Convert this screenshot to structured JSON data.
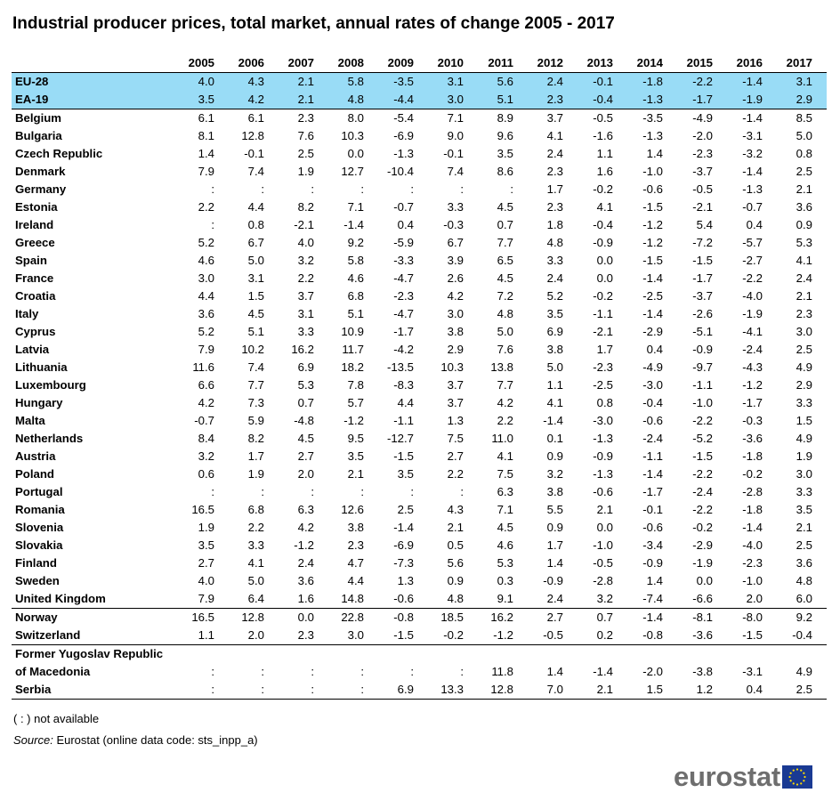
{
  "title": "Industrial producer prices, total market, annual rates of change 2005 - 2017",
  "table": {
    "years": [
      "2005",
      "2006",
      "2007",
      "2008",
      "2009",
      "2010",
      "2011",
      "2012",
      "2013",
      "2014",
      "2015",
      "2016",
      "2017"
    ],
    "rows": [
      {
        "name": "EU-28",
        "values": [
          "4.0",
          "4.3",
          "2.1",
          "5.8",
          "-3.5",
          "3.1",
          "5.6",
          "2.4",
          "-0.1",
          "-1.8",
          "-2.2",
          "-1.4",
          "3.1"
        ]
      },
      {
        "name": "EA-19",
        "values": [
          "3.5",
          "4.2",
          "2.1",
          "4.8",
          "-4.4",
          "3.0",
          "5.1",
          "2.3",
          "-0.4",
          "-1.3",
          "-1.7",
          "-1.9",
          "2.9"
        ]
      },
      {
        "name": "Belgium",
        "values": [
          "6.1",
          "6.1",
          "2.3",
          "8.0",
          "-5.4",
          "7.1",
          "8.9",
          "3.7",
          "-0.5",
          "-3.5",
          "-4.9",
          "-1.4",
          "8.5"
        ]
      },
      {
        "name": "Bulgaria",
        "values": [
          "8.1",
          "12.8",
          "7.6",
          "10.3",
          "-6.9",
          "9.0",
          "9.6",
          "4.1",
          "-1.6",
          "-1.3",
          "-2.0",
          "-3.1",
          "5.0"
        ]
      },
      {
        "name": "Czech Republic",
        "values": [
          "1.4",
          "-0.1",
          "2.5",
          "0.0",
          "-1.3",
          "-0.1",
          "3.5",
          "2.4",
          "1.1",
          "1.4",
          "-2.3",
          "-3.2",
          "0.8"
        ]
      },
      {
        "name": "Denmark",
        "values": [
          "7.9",
          "7.4",
          "1.9",
          "12.7",
          "-10.4",
          "7.4",
          "8.6",
          "2.3",
          "1.6",
          "-1.0",
          "-3.7",
          "-1.4",
          "2.5"
        ]
      },
      {
        "name": "Germany",
        "values": [
          ":",
          ":",
          ":",
          ":",
          ":",
          ":",
          ":",
          "1.7",
          "-0.2",
          "-0.6",
          "-0.5",
          "-1.3",
          "2.1"
        ]
      },
      {
        "name": "Estonia",
        "values": [
          "2.2",
          "4.4",
          "8.2",
          "7.1",
          "-0.7",
          "3.3",
          "4.5",
          "2.3",
          "4.1",
          "-1.5",
          "-2.1",
          "-0.7",
          "3.6"
        ]
      },
      {
        "name": "Ireland",
        "values": [
          ":",
          "0.8",
          "-2.1",
          "-1.4",
          "0.4",
          "-0.3",
          "0.7",
          "1.8",
          "-0.4",
          "-1.2",
          "5.4",
          "0.4",
          "0.9"
        ]
      },
      {
        "name": "Greece",
        "values": [
          "5.2",
          "6.7",
          "4.0",
          "9.2",
          "-5.9",
          "6.7",
          "7.7",
          "4.8",
          "-0.9",
          "-1.2",
          "-7.2",
          "-5.7",
          "5.3"
        ]
      },
      {
        "name": "Spain",
        "values": [
          "4.6",
          "5.0",
          "3.2",
          "5.8",
          "-3.3",
          "3.9",
          "6.5",
          "3.3",
          "0.0",
          "-1.5",
          "-1.5",
          "-2.7",
          "4.1"
        ]
      },
      {
        "name": "France",
        "values": [
          "3.0",
          "3.1",
          "2.2",
          "4.6",
          "-4.7",
          "2.6",
          "4.5",
          "2.4",
          "0.0",
          "-1.4",
          "-1.7",
          "-2.2",
          "2.4"
        ]
      },
      {
        "name": "Croatia",
        "values": [
          "4.4",
          "1.5",
          "3.7",
          "6.8",
          "-2.3",
          "4.2",
          "7.2",
          "5.2",
          "-0.2",
          "-2.5",
          "-3.7",
          "-4.0",
          "2.1"
        ]
      },
      {
        "name": "Italy",
        "values": [
          "3.6",
          "4.5",
          "3.1",
          "5.1",
          "-4.7",
          "3.0",
          "4.8",
          "3.5",
          "-1.1",
          "-1.4",
          "-2.6",
          "-1.9",
          "2.3"
        ]
      },
      {
        "name": "Cyprus",
        "values": [
          "5.2",
          "5.1",
          "3.3",
          "10.9",
          "-1.7",
          "3.8",
          "5.0",
          "6.9",
          "-2.1",
          "-2.9",
          "-5.1",
          "-4.1",
          "3.0"
        ]
      },
      {
        "name": "Latvia",
        "values": [
          "7.9",
          "10.2",
          "16.2",
          "11.7",
          "-4.2",
          "2.9",
          "7.6",
          "3.8",
          "1.7",
          "0.4",
          "-0.9",
          "-2.4",
          "2.5"
        ]
      },
      {
        "name": "Lithuania",
        "values": [
          "11.6",
          "7.4",
          "6.9",
          "18.2",
          "-13.5",
          "10.3",
          "13.8",
          "5.0",
          "-2.3",
          "-4.9",
          "-9.7",
          "-4.3",
          "4.9"
        ]
      },
      {
        "name": "Luxembourg",
        "values": [
          "6.6",
          "7.7",
          "5.3",
          "7.8",
          "-8.3",
          "3.7",
          "7.7",
          "1.1",
          "-2.5",
          "-3.0",
          "-1.1",
          "-1.2",
          "2.9"
        ]
      },
      {
        "name": "Hungary",
        "values": [
          "4.2",
          "7.3",
          "0.7",
          "5.7",
          "4.4",
          "3.7",
          "4.2",
          "4.1",
          "0.8",
          "-0.4",
          "-1.0",
          "-1.7",
          "3.3"
        ]
      },
      {
        "name": "Malta",
        "values": [
          "-0.7",
          "5.9",
          "-4.8",
          "-1.2",
          "-1.1",
          "1.3",
          "2.2",
          "-1.4",
          "-3.0",
          "-0.6",
          "-2.2",
          "-0.3",
          "1.5"
        ]
      },
      {
        "name": "Netherlands",
        "values": [
          "8.4",
          "8.2",
          "4.5",
          "9.5",
          "-12.7",
          "7.5",
          "11.0",
          "0.1",
          "-1.3",
          "-2.4",
          "-5.2",
          "-3.6",
          "4.9"
        ]
      },
      {
        "name": "Austria",
        "values": [
          "3.2",
          "1.7",
          "2.7",
          "3.5",
          "-1.5",
          "2.7",
          "4.1",
          "0.9",
          "-0.9",
          "-1.1",
          "-1.5",
          "-1.8",
          "1.9"
        ]
      },
      {
        "name": "Poland",
        "values": [
          "0.6",
          "1.9",
          "2.0",
          "2.1",
          "3.5",
          "2.2",
          "7.5",
          "3.2",
          "-1.3",
          "-1.4",
          "-2.2",
          "-0.2",
          "3.0"
        ]
      },
      {
        "name": "Portugal",
        "values": [
          ":",
          ":",
          ":",
          ":",
          ":",
          ":",
          "6.3",
          "3.8",
          "-0.6",
          "-1.7",
          "-2.4",
          "-2.8",
          "3.3"
        ]
      },
      {
        "name": "Romania",
        "values": [
          "16.5",
          "6.8",
          "6.3",
          "12.6",
          "2.5",
          "4.3",
          "7.1",
          "5.5",
          "2.1",
          "-0.1",
          "-2.2",
          "-1.8",
          "3.5"
        ]
      },
      {
        "name": "Slovenia",
        "values": [
          "1.9",
          "2.2",
          "4.2",
          "3.8",
          "-1.4",
          "2.1",
          "4.5",
          "0.9",
          "0.0",
          "-0.6",
          "-0.2",
          "-1.4",
          "2.1"
        ]
      },
      {
        "name": "Slovakia",
        "values": [
          "3.5",
          "3.3",
          "-1.2",
          "2.3",
          "-6.9",
          "0.5",
          "4.6",
          "1.7",
          "-1.0",
          "-3.4",
          "-2.9",
          "-4.0",
          "2.5"
        ]
      },
      {
        "name": "Finland",
        "values": [
          "2.7",
          "4.1",
          "2.4",
          "4.7",
          "-7.3",
          "5.6",
          "5.3",
          "1.4",
          "-0.5",
          "-0.9",
          "-1.9",
          "-2.3",
          "3.6"
        ]
      },
      {
        "name": "Sweden",
        "values": [
          "4.0",
          "5.0",
          "3.6",
          "4.4",
          "1.3",
          "0.9",
          "0.3",
          "-0.9",
          "-2.8",
          "1.4",
          "0.0",
          "-1.0",
          "4.8"
        ]
      },
      {
        "name": "United Kingdom",
        "values": [
          "7.9",
          "6.4",
          "1.6",
          "14.8",
          "-0.6",
          "4.8",
          "9.1",
          "2.4",
          "3.2",
          "-7.4",
          "-6.6",
          "2.0",
          "6.0"
        ]
      },
      {
        "name": "Norway",
        "values": [
          "16.5",
          "12.8",
          "0.0",
          "22.8",
          "-0.8",
          "18.5",
          "16.2",
          "2.7",
          "0.7",
          "-1.4",
          "-8.1",
          "-8.0",
          "9.2"
        ]
      },
      {
        "name": "Switzerland",
        "values": [
          "1.1",
          "2.0",
          "2.3",
          "3.0",
          "-1.5",
          "-0.2",
          "-1.2",
          "-0.5",
          "0.2",
          "-0.8",
          "-3.6",
          "-1.5",
          "-0.4"
        ]
      },
      {
        "name": "Former Yugoslav Republic of Macedonia",
        "values": [
          ":",
          ":",
          ":",
          ":",
          ":",
          ":",
          "11.8",
          "1.4",
          "-1.4",
          "-2.0",
          "-3.8",
          "-3.1",
          "4.9"
        ]
      },
      {
        "name": "Serbia",
        "values": [
          ":",
          ":",
          ":",
          ":",
          "6.9",
          "13.3",
          "12.8",
          "7.0",
          "2.1",
          "1.5",
          "1.2",
          "0.4",
          "2.5"
        ]
      }
    ]
  },
  "footnote": "( : ) not available",
  "source_label": "Source:",
  "source_text": "Eurostat (online data code: sts_inpp_a)",
  "logo_text": "eurostat",
  "colors": {
    "aggregate_row": "#99dcf6",
    "logo_text": "#6e6e6e",
    "flag": "#1a3a93",
    "flag_stars": "#ffdd00"
  }
}
